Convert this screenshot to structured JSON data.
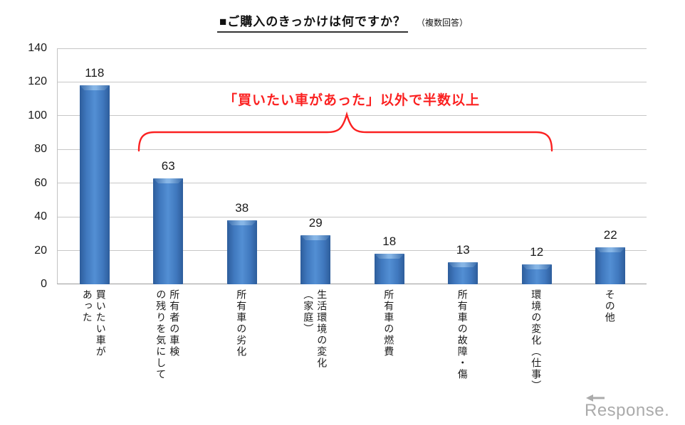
{
  "title": {
    "main": "■ご購入のきっかけは何ですか？",
    "note": "（複数回答）"
  },
  "annotation": {
    "text": "「買いたい車があった」以外で半数以上"
  },
  "watermark": {
    "text": "Response."
  },
  "colors": {
    "bar_center": "#538fd4",
    "bar_edge": "#2d5d9b",
    "bar_bevel": "#87b6e6",
    "annotation_red": "#fb2121",
    "gridline": "#c6c6c6",
    "axis": "#9b9b9b",
    "text": "#1a1a1a",
    "watermark_gray": "#ababab"
  },
  "chart_data": {
    "type": "bar",
    "title": "ご購入のきっかけは何ですか？",
    "subtitle": "（複数回答）",
    "categories": [
      "買いたい車があった",
      "所有者の車検の残りを気にして",
      "所有車の劣化",
      "生活環境の変化（家庭）",
      "所有車の燃費",
      "所有車の故障・傷",
      "環境の変化（仕事）",
      "その他"
    ],
    "category_lines": [
      "買いたい車が\nあった",
      "所有者の車検\nの残りを気にして",
      "所有車の劣化",
      "生活環境の変化\n（家庭）",
      "所有車の燃費",
      "所有車の故障・傷",
      "環境の変化（仕事）",
      "その他"
    ],
    "values": [
      118,
      63,
      38,
      29,
      18,
      13,
      12,
      22
    ],
    "yticks": [
      0,
      20,
      40,
      60,
      80,
      100,
      120,
      140
    ],
    "ylim": [
      0,
      140
    ],
    "grid": true,
    "legend": "none",
    "bar_color": "#3f77bd",
    "annotation": {
      "text": "「買いたい車があった」以外で半数以上",
      "spans_categories": [
        1,
        6
      ]
    }
  }
}
